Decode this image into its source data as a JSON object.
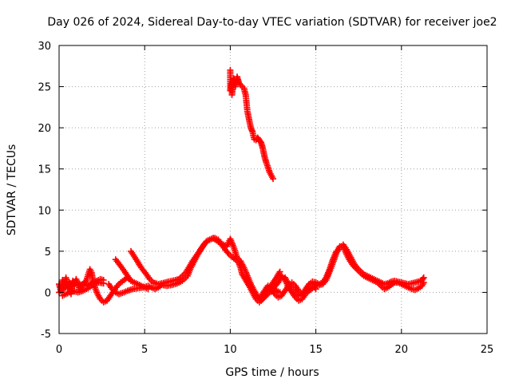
{
  "chart_data": {
    "type": "scatter",
    "title": "Day 026 of 2024, Sidereal Day-to-day VTEC variation (SDTVAR) for receiver joe2",
    "xlabel": "GPS time / hours",
    "ylabel": "SDTVAR / TECUs",
    "xlim": [
      0,
      25
    ],
    "ylim": [
      -5,
      30
    ],
    "x_ticks": [
      0,
      5,
      10,
      15,
      20,
      25
    ],
    "y_ticks": [
      -5,
      0,
      5,
      10,
      15,
      20,
      25,
      30
    ],
    "x_tick_labels": [
      "0",
      "5",
      "10",
      "15",
      "20",
      "25"
    ],
    "y_tick_labels": [
      "-5",
      "0",
      "5",
      "10",
      "15",
      "20",
      "25",
      "30"
    ],
    "grid": true,
    "marker": "+",
    "series": [
      {
        "name": "SDTVAR",
        "color": "#ff0000",
        "segments": [
          [
            [
              0.0,
              1.0
            ],
            [
              0.1,
              0.2
            ],
            [
              0.2,
              1.5
            ],
            [
              0.3,
              0.5
            ],
            [
              0.4,
              1.8
            ],
            [
              0.5,
              0.6
            ],
            [
              0.6,
              1.2
            ],
            [
              0.7,
              -0.2
            ],
            [
              0.8,
              1.4
            ],
            [
              0.9,
              0.8
            ],
            [
              1.0,
              1.6
            ],
            [
              1.2,
              0.4
            ],
            [
              1.4,
              1.0
            ],
            [
              1.6,
              1.5
            ],
            [
              1.8,
              2.8
            ],
            [
              1.9,
              2.4
            ],
            [
              2.0,
              1.2
            ],
            [
              2.2,
              0.0
            ],
            [
              2.4,
              -0.8
            ],
            [
              2.6,
              -1.2
            ],
            [
              2.8,
              -1.0
            ],
            [
              3.0,
              -0.4
            ],
            [
              3.2,
              0.2
            ],
            [
              3.4,
              0.8
            ],
            [
              3.6,
              1.2
            ],
            [
              3.8,
              1.5
            ],
            [
              4.0,
              1.8
            ],
            [
              4.1,
              1.6
            ]
          ],
          [
            [
              0.0,
              0.0
            ],
            [
              0.3,
              0.5
            ],
            [
              0.6,
              0.9
            ],
            [
              0.9,
              1.2
            ],
            [
              1.2,
              1.0
            ],
            [
              1.5,
              0.8
            ],
            [
              1.8,
              1.0
            ],
            [
              2.1,
              1.3
            ],
            [
              2.4,
              1.6
            ],
            [
              2.6,
              1.5
            ]
          ],
          [
            [
              0.2,
              -0.4
            ],
            [
              0.5,
              -0.1
            ],
            [
              0.8,
              0.2
            ],
            [
              1.1,
              0.0
            ],
            [
              1.4,
              0.2
            ],
            [
              1.7,
              0.5
            ],
            [
              2.0,
              1.0
            ],
            [
              2.3,
              1.2
            ],
            [
              2.6,
              1.1
            ]
          ],
          [
            [
              2.9,
              1.0
            ],
            [
              3.1,
              0.4
            ],
            [
              3.3,
              0.0
            ],
            [
              3.5,
              -0.2
            ],
            [
              3.8,
              0.0
            ],
            [
              4.0,
              0.2
            ],
            [
              4.3,
              0.4
            ],
            [
              4.6,
              0.5
            ],
            [
              4.9,
              0.6
            ],
            [
              5.2,
              0.8
            ],
            [
              5.4,
              0.6
            ],
            [
              5.6,
              0.4
            ],
            [
              5.8,
              0.6
            ],
            [
              6.0,
              0.9
            ],
            [
              6.3,
              0.8
            ],
            [
              6.6,
              0.9
            ],
            [
              6.9,
              1.1
            ],
            [
              7.2,
              1.4
            ],
            [
              7.5,
              2.0
            ],
            [
              7.7,
              3.0
            ],
            [
              7.9,
              3.8
            ],
            [
              8.1,
              4.6
            ],
            [
              8.3,
              5.3
            ],
            [
              8.5,
              5.9
            ],
            [
              8.7,
              6.3
            ],
            [
              8.9,
              6.5
            ],
            [
              9.1,
              6.6
            ],
            [
              9.3,
              6.4
            ],
            [
              9.5,
              5.8
            ],
            [
              9.7,
              5.2
            ],
            [
              9.9,
              4.7
            ],
            [
              10.1,
              4.3
            ],
            [
              10.3,
              4.0
            ],
            [
              10.5,
              3.6
            ],
            [
              10.6,
              3.0
            ],
            [
              10.7,
              2.2
            ],
            [
              10.9,
              1.5
            ],
            [
              11.1,
              0.8
            ],
            [
              11.3,
              0.0
            ],
            [
              11.5,
              -0.8
            ],
            [
              11.7,
              -1.2
            ],
            [
              11.9,
              -0.8
            ],
            [
              12.1,
              -0.2
            ],
            [
              12.3,
              0.5
            ],
            [
              12.5,
              1.2
            ],
            [
              12.7,
              1.8
            ],
            [
              12.9,
              2.5
            ]
          ],
          [
            [
              3.3,
              4.0
            ],
            [
              3.6,
              3.2
            ],
            [
              3.8,
              2.6
            ],
            [
              4.0,
              2.0
            ],
            [
              4.2,
              1.4
            ],
            [
              4.4,
              1.2
            ],
            [
              4.6,
              1.0
            ],
            [
              4.8,
              0.8
            ],
            [
              5.0,
              0.6
            ],
            [
              5.2,
              0.4
            ]
          ],
          [
            [
              4.2,
              5.0
            ],
            [
              4.5,
              4.0
            ],
            [
              4.8,
              3.0
            ],
            [
              5.1,
              2.2
            ],
            [
              5.3,
              1.6
            ],
            [
              5.5,
              1.2
            ],
            [
              5.8,
              1.0
            ],
            [
              6.2,
              1.2
            ],
            [
              6.6,
              1.4
            ],
            [
              7.0,
              1.6
            ],
            [
              7.4,
              2.4
            ],
            [
              7.8,
              3.8
            ],
            [
              8.2,
              5.0
            ],
            [
              8.6,
              6.2
            ],
            [
              9.0,
              6.6
            ],
            [
              9.4,
              6.0
            ],
            [
              9.8,
              5.6
            ],
            [
              10.0,
              6.5
            ],
            [
              10.2,
              5.5
            ],
            [
              10.4,
              4.2
            ],
            [
              10.6,
              3.8
            ],
            [
              10.8,
              3.0
            ],
            [
              11.0,
              2.0
            ],
            [
              11.2,
              1.0
            ],
            [
              11.4,
              0.2
            ],
            [
              11.6,
              -0.5
            ],
            [
              11.8,
              -1.0
            ],
            [
              12.0,
              -0.6
            ],
            [
              12.3,
              0.0
            ],
            [
              12.6,
              0.3
            ],
            [
              12.9,
              0.0
            ]
          ],
          [
            [
              10.0,
              27.0
            ],
            [
              10.0,
              24.5
            ],
            [
              10.1,
              25.5
            ],
            [
              10.1,
              24.0
            ],
            [
              10.2,
              26.0
            ],
            [
              10.3,
              25.0
            ],
            [
              10.4,
              26.2
            ],
            [
              10.5,
              25.5
            ],
            [
              10.6,
              25.2
            ],
            [
              10.7,
              25.0
            ],
            [
              10.8,
              24.8
            ],
            [
              10.9,
              24.0
            ],
            [
              11.0,
              22.0
            ],
            [
              11.1,
              21.0
            ],
            [
              11.2,
              20.0
            ],
            [
              11.3,
              19.5
            ],
            [
              11.4,
              18.6
            ],
            [
              11.5,
              18.5
            ],
            [
              11.6,
              18.8
            ],
            [
              11.7,
              18.5
            ],
            [
              11.8,
              18.2
            ],
            [
              11.9,
              17.5
            ],
            [
              12.0,
              16.5
            ],
            [
              12.1,
              15.8
            ],
            [
              12.2,
              15.2
            ],
            [
              12.3,
              14.6
            ],
            [
              12.4,
              14.2
            ],
            [
              12.5,
              13.8
            ]
          ],
          [
            [
              12.5,
              0.5
            ],
            [
              12.8,
              1.2
            ],
            [
              13.0,
              2.0
            ],
            [
              13.2,
              1.5
            ],
            [
              13.4,
              0.6
            ],
            [
              13.6,
              0.0
            ],
            [
              13.8,
              -0.6
            ],
            [
              14.0,
              -1.0
            ],
            [
              14.2,
              -0.8
            ],
            [
              14.4,
              -0.2
            ],
            [
              14.6,
              0.2
            ],
            [
              14.8,
              0.5
            ],
            [
              15.0,
              0.8
            ],
            [
              15.2,
              0.9
            ],
            [
              15.4,
              1.0
            ],
            [
              15.6,
              1.5
            ],
            [
              15.8,
              2.5
            ],
            [
              16.0,
              3.6
            ],
            [
              16.2,
              4.8
            ],
            [
              16.4,
              5.6
            ],
            [
              16.6,
              5.6
            ],
            [
              16.8,
              4.6
            ],
            [
              17.0,
              3.8
            ],
            [
              17.2,
              3.2
            ],
            [
              17.4,
              2.8
            ],
            [
              17.6,
              2.4
            ],
            [
              17.8,
              2.0
            ],
            [
              18.0,
              1.8
            ],
            [
              18.2,
              1.6
            ],
            [
              18.4,
              1.4
            ],
            [
              18.6,
              1.2
            ],
            [
              18.8,
              0.8
            ],
            [
              19.0,
              0.4
            ],
            [
              19.2,
              0.6
            ],
            [
              19.4,
              0.9
            ],
            [
              19.6,
              1.2
            ],
            [
              19.8,
              1.2
            ],
            [
              20.0,
              1.0
            ],
            [
              20.2,
              0.8
            ],
            [
              20.4,
              0.6
            ],
            [
              20.6,
              0.4
            ],
            [
              20.8,
              0.3
            ],
            [
              21.0,
              0.5
            ],
            [
              21.2,
              0.8
            ],
            [
              21.3,
              1.2
            ]
          ],
          [
            [
              13.2,
              1.8
            ],
            [
              13.4,
              1.0
            ],
            [
              13.6,
              0.4
            ],
            [
              13.8,
              0.0
            ],
            [
              14.0,
              -0.4
            ],
            [
              14.2,
              -0.2
            ],
            [
              14.4,
              0.4
            ],
            [
              14.6,
              1.0
            ],
            [
              14.8,
              1.3
            ],
            [
              15.0,
              1.2
            ],
            [
              15.2,
              1.0
            ],
            [
              15.4,
              1.2
            ],
            [
              15.6,
              1.8
            ],
            [
              15.8,
              2.8
            ],
            [
              16.0,
              4.0
            ],
            [
              16.2,
              5.0
            ],
            [
              16.4,
              5.4
            ],
            [
              16.6,
              5.8
            ],
            [
              16.8,
              5.2
            ],
            [
              17.0,
              4.4
            ],
            [
              17.2,
              3.6
            ],
            [
              17.4,
              3.0
            ],
            [
              17.6,
              2.6
            ],
            [
              17.8,
              2.2
            ],
            [
              18.0,
              2.0
            ],
            [
              18.2,
              1.8
            ],
            [
              18.4,
              1.6
            ],
            [
              18.6,
              1.4
            ],
            [
              18.8,
              1.2
            ],
            [
              19.0,
              1.0
            ],
            [
              19.2,
              1.1
            ],
            [
              19.4,
              1.3
            ],
            [
              19.6,
              1.4
            ],
            [
              19.8,
              1.3
            ],
            [
              20.0,
              1.2
            ],
            [
              20.2,
              1.1
            ],
            [
              20.4,
              1.0
            ],
            [
              20.6,
              1.1
            ],
            [
              20.8,
              1.2
            ],
            [
              21.0,
              1.3
            ],
            [
              21.2,
              1.5
            ],
            [
              21.3,
              1.8
            ]
          ],
          [
            [
              11.8,
              -0.5
            ],
            [
              12.0,
              0.2
            ],
            [
              12.2,
              0.8
            ],
            [
              12.4,
              0.4
            ],
            [
              12.6,
              -0.2
            ],
            [
              12.8,
              -0.6
            ],
            [
              13.0,
              -0.4
            ],
            [
              13.2,
              0.2
            ],
            [
              13.4,
              0.8
            ],
            [
              13.6,
              1.2
            ],
            [
              13.8,
              0.8
            ],
            [
              14.0,
              0.2
            ],
            [
              14.2,
              -0.2
            ],
            [
              14.4,
              0.0
            ],
            [
              14.6,
              0.6
            ],
            [
              14.8,
              1.0
            ],
            [
              15.0,
              0.4
            ]
          ]
        ]
      }
    ]
  }
}
